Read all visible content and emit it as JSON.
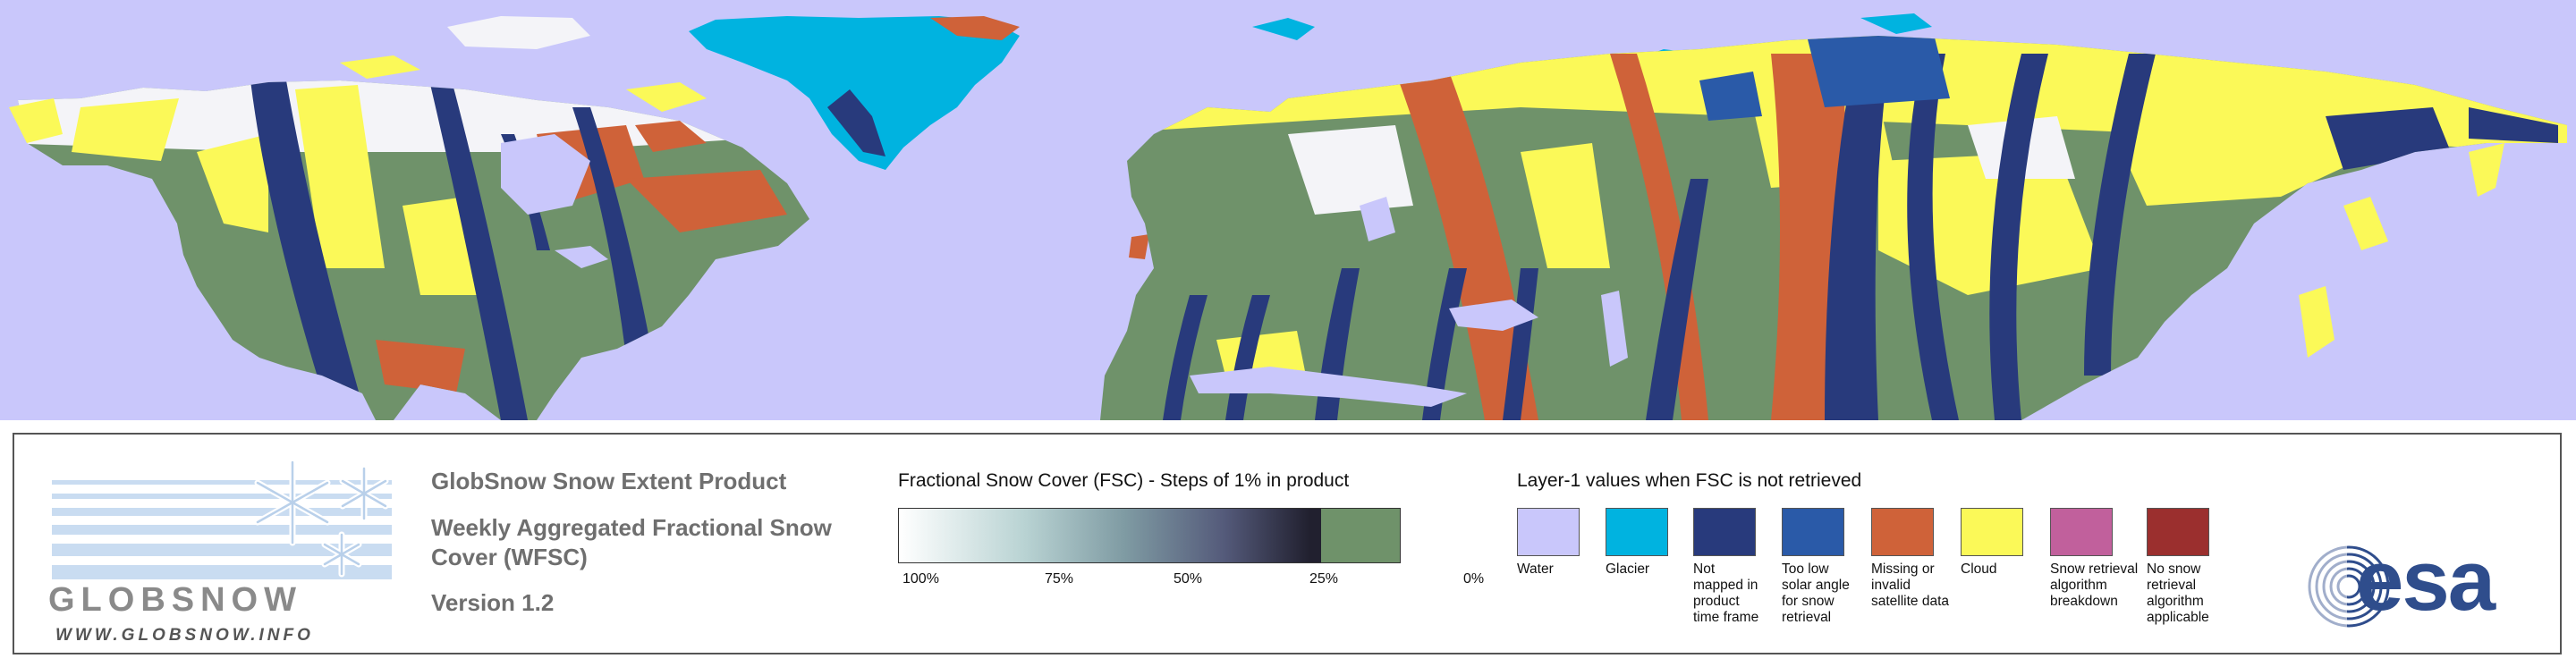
{
  "map": {
    "colors": {
      "water": "#c9c7fb",
      "land_fsc0": "#6f926a",
      "glacier": "#00b3e0",
      "not_mapped": "#283a7c",
      "low_solar": "#2a5aa8",
      "missing": "#cf6239",
      "cloud": "#fbf958",
      "snow": "#f4f4f8"
    }
  },
  "logo": {
    "wordmark": "GLOBSNOW",
    "url": "WWW.GLOBSNOW.INFO"
  },
  "product": {
    "line1": "GlobSnow Snow Extent Product",
    "line2": "Weekly Aggregated Fractional Snow Cover (WFSC)",
    "line3": "Version 1.2"
  },
  "fsc_legend": {
    "title": "Fractional Snow Cover (FSC) - Steps of 1% in product",
    "ticks": [
      "100%",
      "75%",
      "50%",
      "25%",
      "0%"
    ]
  },
  "layer1_legend": {
    "title": "Layer-1 values when FSC is not retrieved",
    "items": [
      {
        "label": "Water",
        "color": "#c9c7fb"
      },
      {
        "label": "Glacier",
        "color": "#00b3e0"
      },
      {
        "label": "Not mapped in product time frame",
        "color": "#283a7c"
      },
      {
        "label": "Too low solar angle for snow retrieval",
        "color": "#2a5aa8"
      },
      {
        "label": "Missing or invalid satellite data",
        "color": "#cf6239"
      },
      {
        "label": "Cloud",
        "color": "#fbf958"
      },
      {
        "label": "Snow retrieval algorithm breakdown",
        "color": "#c1609c"
      },
      {
        "label": "No snow retrieval algorithm applicable",
        "color": "#9b2f2e"
      }
    ]
  },
  "esa": {
    "text": "esa"
  }
}
